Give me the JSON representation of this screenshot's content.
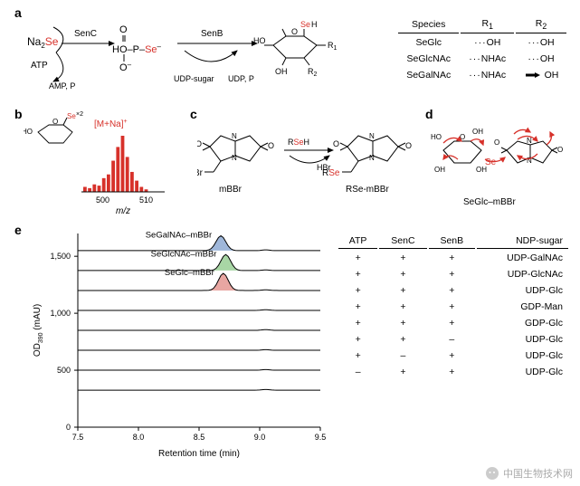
{
  "labels": {
    "a": "a",
    "b": "b",
    "c": "c",
    "d": "d",
    "e": "e"
  },
  "panelA": {
    "reagents": {
      "na2se": "Na",
      "se_sub": "Se",
      "atp": "ATP",
      "amp": "AMP,\nP",
      "isub": "i",
      "senc": "SenC",
      "senb": "SenB",
      "udpsugar": "UDP-sugar",
      "udp": "UDP,\nP",
      "seh": "Se",
      "seh_h": "H"
    },
    "table": {
      "head": [
        "Species",
        "R",
        "1",
        "R",
        "2"
      ],
      "rows": [
        [
          "SeGlc",
          "OH",
          "OH"
        ],
        [
          "SeGlcNAc",
          "NHAc",
          "OH"
        ],
        [
          "SeGalNAc",
          "NHAc",
          "OH"
        ]
      ]
    },
    "colors": {
      "se": "#d7312a",
      "curve": "#000"
    }
  },
  "panelB": {
    "xlabel": "m/z",
    "annot": "[M+Na]",
    "annot_sup": "+",
    "se_label": "Se",
    "se_sup": "×2",
    "ticks": [
      "500",
      "510"
    ],
    "bar_color": "#d7312a",
    "bars": [
      8,
      6,
      12,
      10,
      22,
      28,
      50,
      72,
      90,
      56,
      32,
      18,
      8,
      4
    ]
  },
  "panelC": {
    "mbbr": "mBBr",
    "rse_mbbr": "RSe-mBBr",
    "br": "Br",
    "rseh": "RSeH",
    "hbr": "HBr",
    "rse": "RSe",
    "stroke": "#000",
    "se_color": "#d7312a"
  },
  "panelD": {
    "label": "SeGlc–mBBr",
    "arrow_color": "#d7312a"
  },
  "panelE": {
    "ylabel": "OD",
    "ylabel_sub": "390",
    "ylabel_unit": "(mAU)",
    "xlabel": "Retention time (min)",
    "xticks": [
      7.5,
      8.0,
      8.5,
      9.0,
      9.5
    ],
    "yticks": [
      0,
      500,
      1000,
      1500
    ],
    "ylim": [
      0,
      1700
    ],
    "traces": [
      {
        "label": "SeGalNAc–mBBr",
        "baseline": 1550,
        "peak_x": 8.68,
        "height": 130,
        "fill": "#9fb7da"
      },
      {
        "label": "SeGlcNAc–mBBr",
        "baseline": 1375,
        "peak_x": 8.72,
        "height": 140,
        "fill": "#a8d6a5"
      },
      {
        "label": "SeGlc–mBBr",
        "baseline": 1200,
        "peak_x": 8.7,
        "height": 150,
        "fill": "#e8a6a2"
      },
      {
        "label": "",
        "baseline": 1025,
        "peak_x": 8.7,
        "height": 0,
        "fill": "none"
      },
      {
        "label": "",
        "baseline": 850,
        "peak_x": 8.7,
        "height": 0,
        "fill": "none"
      },
      {
        "label": "",
        "baseline": 675,
        "peak_x": 8.7,
        "height": 0,
        "fill": "none"
      },
      {
        "label": "",
        "baseline": 500,
        "peak_x": 8.7,
        "height": 0,
        "fill": "none"
      },
      {
        "label": "",
        "baseline": 325,
        "peak_x": 8.7,
        "height": 0,
        "fill": "none"
      }
    ],
    "line_color": "#000",
    "table": {
      "head": [
        "ATP",
        "SenC",
        "SenB",
        "NDP-sugar"
      ],
      "rows": [
        [
          "+",
          "+",
          "+",
          "UDP-GalNAc"
        ],
        [
          "+",
          "+",
          "+",
          "UDP-GlcNAc"
        ],
        [
          "+",
          "+",
          "+",
          "UDP-Glc"
        ],
        [
          "+",
          "+",
          "+",
          "GDP-Man"
        ],
        [
          "+",
          "+",
          "+",
          "GDP-Glc"
        ],
        [
          "+",
          "+",
          "–",
          "UDP-Glc"
        ],
        [
          "+",
          "–",
          "+",
          "UDP-Glc"
        ],
        [
          "–",
          "+",
          "+",
          "UDP-Glc"
        ]
      ]
    }
  },
  "watermark": {
    "icon": "logo",
    "text": "中国生物技术网"
  }
}
